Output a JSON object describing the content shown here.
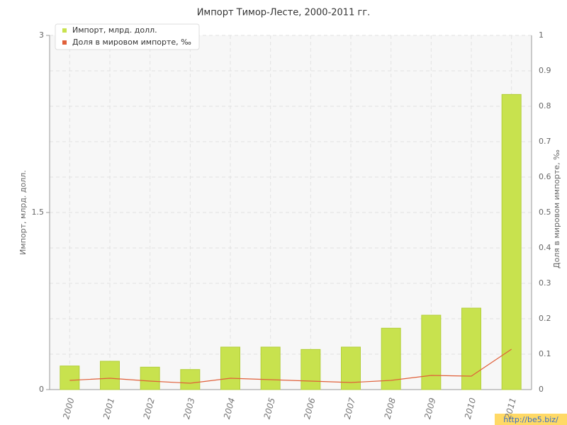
{
  "chart_data": {
    "type": "bar_line",
    "title": "Импорт Тимор-Лесте, 2000-2011 гг.",
    "categories": [
      "2000",
      "2001",
      "2002",
      "2003",
      "2004",
      "2005",
      "2006",
      "2007",
      "2008",
      "2009",
      "2010",
      "2011"
    ],
    "series": [
      {
        "name": "Импорт, млрд. долл.",
        "type": "bar",
        "color": "#c8e24e",
        "axis": "y",
        "values": [
          0.2,
          0.24,
          0.19,
          0.17,
          0.36,
          0.36,
          0.34,
          0.36,
          0.52,
          0.63,
          0.69,
          2.5
        ]
      },
      {
        "name": "Доля в мировом импорте, ‰",
        "type": "line",
        "color": "#e0603a",
        "axis": "y2",
        "values": [
          0.026,
          0.032,
          0.024,
          0.018,
          0.032,
          0.028,
          0.024,
          0.02,
          0.026,
          0.04,
          0.038,
          0.114
        ]
      }
    ],
    "ylabel": "Импорт, млрд. долл.",
    "y2label": "Доля в мировом импорте, ‰",
    "ylim": [
      0,
      3
    ],
    "yticks": [
      0,
      1.5,
      3
    ],
    "y2lim": [
      0,
      1
    ],
    "y2ticks": [
      0,
      0.1,
      0.2,
      0.3,
      0.4,
      0.5,
      0.6,
      0.7,
      0.8,
      0.9,
      1
    ],
    "grid": true,
    "watermark": "http://be5.biz/"
  }
}
